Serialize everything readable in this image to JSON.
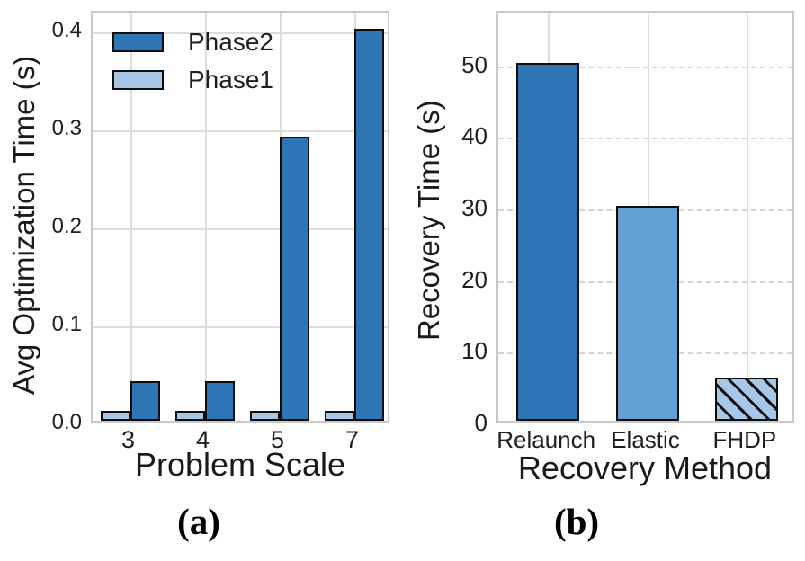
{
  "figure": {
    "background": "#ffffff",
    "captions": {
      "a": "(a)",
      "b": "(b)"
    }
  },
  "colors": {
    "phase2_dark_blue": "#2e75b5",
    "phase1_light_blue": "#a7c7e7",
    "elastic_medium_blue": "#64a0d2",
    "bar_edge": "#0d0d0d",
    "grid": "#dcdcdc",
    "spine": "#c9c9c9",
    "text": "#1f1f1f"
  },
  "chart_data": [
    {
      "type": "bar",
      "panel": "a",
      "title": "",
      "xlabel": "Problem Scale",
      "ylabel": "Avg Optimization Time (s)",
      "categories": [
        "3",
        "4",
        "5",
        "7"
      ],
      "series": [
        {
          "name": "Phase1",
          "color": "#a7c7e7",
          "values": [
            0.01,
            0.01,
            0.01,
            0.01
          ]
        },
        {
          "name": "Phase2",
          "color": "#2e75b5",
          "values": [
            0.04,
            0.04,
            0.29,
            0.4
          ]
        }
      ],
      "legend": [
        "Phase2",
        "Phase1"
      ],
      "legend_position": "upper-left",
      "yticks": [
        0.0,
        0.1,
        0.2,
        0.3,
        0.4
      ],
      "ytick_labels": [
        "0.0",
        "0.1",
        "0.2",
        "0.3",
        "0.4"
      ],
      "ylim": [
        0,
        0.42
      ],
      "grid": "solid horizontal and vertical"
    },
    {
      "type": "bar",
      "panel": "b",
      "title": "",
      "xlabel": "Recovery Method",
      "ylabel": "Recovery Time (s)",
      "categories": [
        "Relaunch",
        "Elastic",
        "FHDP"
      ],
      "values": [
        50,
        30,
        6
      ],
      "bar_styles": [
        {
          "color": "#2e75b5",
          "hatch": ""
        },
        {
          "color": "#64a0d2",
          "hatch": ""
        },
        {
          "color": "#a7c7e7",
          "hatch": "\\"
        }
      ],
      "yticks": [
        0,
        10,
        20,
        30,
        40,
        50
      ],
      "ytick_labels": [
        "0",
        "10",
        "20",
        "30",
        "40",
        "50"
      ],
      "ylim": [
        0,
        57.5
      ],
      "grid": "dashed horizontal, solid vertical"
    }
  ]
}
